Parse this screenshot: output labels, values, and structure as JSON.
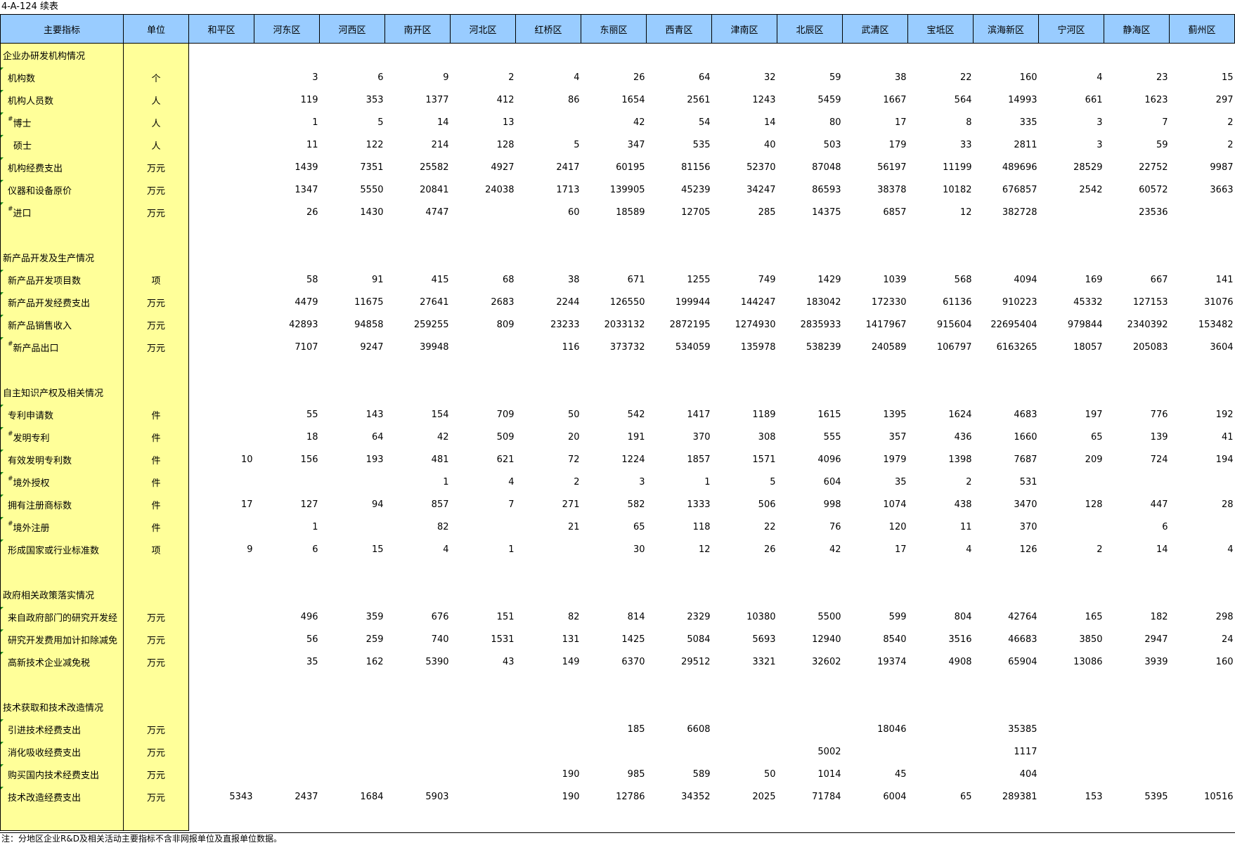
{
  "title": "4-A-124 续表",
  "headers": [
    "主要指标",
    "单位",
    "和平区",
    "河东区",
    "河西区",
    "南开区",
    "河北区",
    "红桥区",
    "东丽区",
    "西青区",
    "津南区",
    "北辰区",
    "武清区",
    "宝坻区",
    "滨海新区",
    "宁河区",
    "静海区",
    "蓟州区"
  ],
  "rows": [
    {
      "label": "企业办研发机构情况",
      "mark": "",
      "unit": "",
      "values": [
        "",
        "",
        "",
        "",
        "",
        "",
        "",
        "",
        "",
        "",
        "",
        "",
        "",
        "",
        "",
        ""
      ]
    },
    {
      "label": "机构数",
      "mark": "",
      "unit": "个",
      "values": [
        "",
        "3",
        "6",
        "9",
        "2",
        "4",
        "26",
        "64",
        "32",
        "59",
        "38",
        "22",
        "160",
        "4",
        "23",
        "15"
      ]
    },
    {
      "label": "机构人员数",
      "mark": "",
      "unit": "人",
      "values": [
        "",
        "119",
        "353",
        "1377",
        "412",
        "86",
        "1654",
        "2561",
        "1243",
        "5459",
        "1667",
        "564",
        "14993",
        "661",
        "1623",
        "297"
      ]
    },
    {
      "label": "博士",
      "mark": "#",
      "unit": "人",
      "values": [
        "",
        "1",
        "5",
        "14",
        "13",
        "",
        "42",
        "54",
        "14",
        "80",
        "17",
        "8",
        "335",
        "3",
        "7",
        "2"
      ]
    },
    {
      "label": "硕士",
      "mark": "",
      "unit": "人",
      "values": [
        "",
        "11",
        "122",
        "214",
        "128",
        "5",
        "347",
        "535",
        "40",
        "503",
        "179",
        "33",
        "2811",
        "3",
        "59",
        "2"
      ]
    },
    {
      "label": "机构经费支出",
      "mark": "",
      "unit": "万元",
      "values": [
        "",
        "1439",
        "7351",
        "25582",
        "4927",
        "2417",
        "60195",
        "81156",
        "52370",
        "87048",
        "56197",
        "11199",
        "489696",
        "28529",
        "22752",
        "9987"
      ]
    },
    {
      "label": "仪器和设备原价",
      "mark": "",
      "unit": "万元",
      "values": [
        "",
        "1347",
        "5550",
        "20841",
        "24038",
        "1713",
        "139905",
        "45239",
        "34247",
        "86593",
        "38378",
        "10182",
        "676857",
        "2542",
        "60572",
        "3663"
      ]
    },
    {
      "label": "进口",
      "mark": "#",
      "unit": "万元",
      "values": [
        "",
        "26",
        "1430",
        "4747",
        "",
        "60",
        "18589",
        "12705",
        "285",
        "14375",
        "6857",
        "12",
        "382728",
        "",
        "23536",
        ""
      ]
    },
    {
      "label": "",
      "mark": "",
      "unit": "",
      "values": [
        "",
        "",
        "",
        "",
        "",
        "",
        "",
        "",
        "",
        "",
        "",
        "",
        "",
        "",
        "",
        ""
      ]
    },
    {
      "label": "新产品开发及生产情况",
      "mark": "",
      "unit": "",
      "values": [
        "",
        "",
        "",
        "",
        "",
        "",
        "",
        "",
        "",
        "",
        "",
        "",
        "",
        "",
        "",
        ""
      ]
    },
    {
      "label": "新产品开发项目数",
      "mark": "",
      "unit": "项",
      "values": [
        "",
        "58",
        "91",
        "415",
        "68",
        "38",
        "671",
        "1255",
        "749",
        "1429",
        "1039",
        "568",
        "4094",
        "169",
        "667",
        "141"
      ]
    },
    {
      "label": "新产品开发经费支出",
      "mark": "",
      "unit": "万元",
      "values": [
        "",
        "4479",
        "11675",
        "27641",
        "2683",
        "2244",
        "126550",
        "199944",
        "144247",
        "183042",
        "172330",
        "61136",
        "910223",
        "45332",
        "127153",
        "31076"
      ]
    },
    {
      "label": "新产品销售收入",
      "mark": "",
      "unit": "万元",
      "values": [
        "",
        "42893",
        "94858",
        "259255",
        "809",
        "23233",
        "2033132",
        "2872195",
        "1274930",
        "2835933",
        "1417967",
        "915604",
        "22695404",
        "979844",
        "2340392",
        "153482"
      ]
    },
    {
      "label": "新产品出口",
      "mark": "#",
      "unit": "万元",
      "values": [
        "",
        "7107",
        "9247",
        "39948",
        "",
        "116",
        "373732",
        "534059",
        "135978",
        "538239",
        "240589",
        "106797",
        "6163265",
        "18057",
        "205083",
        "3604"
      ]
    },
    {
      "label": "",
      "mark": "",
      "unit": "",
      "values": [
        "",
        "",
        "",
        "",
        "",
        "",
        "",
        "",
        "",
        "",
        "",
        "",
        "",
        "",
        "",
        ""
      ]
    },
    {
      "label": "自主知识产权及相关情况",
      "mark": "",
      "unit": "",
      "values": [
        "",
        "",
        "",
        "",
        "",
        "",
        "",
        "",
        "",
        "",
        "",
        "",
        "",
        "",
        "",
        ""
      ]
    },
    {
      "label": "专利申请数",
      "mark": "",
      "unit": "件",
      "values": [
        "",
        "55",
        "143",
        "154",
        "709",
        "50",
        "542",
        "1417",
        "1189",
        "1615",
        "1395",
        "1624",
        "4683",
        "197",
        "776",
        "192"
      ]
    },
    {
      "label": "发明专利",
      "mark": "#",
      "unit": "件",
      "values": [
        "",
        "18",
        "64",
        "42",
        "509",
        "20",
        "191",
        "370",
        "308",
        "555",
        "357",
        "436",
        "1660",
        "65",
        "139",
        "41"
      ]
    },
    {
      "label": "有效发明专利数",
      "mark": "",
      "unit": "件",
      "values": [
        "10",
        "156",
        "193",
        "481",
        "621",
        "72",
        "1224",
        "1857",
        "1571",
        "4096",
        "1979",
        "1398",
        "7687",
        "209",
        "724",
        "194"
      ]
    },
    {
      "label": "境外授权",
      "mark": "#",
      "unit": "件",
      "values": [
        "",
        "",
        "",
        "1",
        "4",
        "2",
        "3",
        "1",
        "5",
        "604",
        "35",
        "2",
        "531",
        "",
        "",
        ""
      ]
    },
    {
      "label": "拥有注册商标数",
      "mark": "",
      "unit": "件",
      "values": [
        "17",
        "127",
        "94",
        "857",
        "7",
        "271",
        "582",
        "1333",
        "506",
        "998",
        "1074",
        "438",
        "3470",
        "128",
        "447",
        "28"
      ]
    },
    {
      "label": "境外注册",
      "mark": "#",
      "unit": "件",
      "values": [
        "",
        "1",
        "",
        "82",
        "",
        "21",
        "65",
        "118",
        "22",
        "76",
        "120",
        "11",
        "370",
        "",
        "6",
        ""
      ]
    },
    {
      "label": "形成国家或行业标准数",
      "mark": "",
      "unit": "项",
      "values": [
        "9",
        "6",
        "15",
        "4",
        "1",
        "",
        "30",
        "12",
        "26",
        "42",
        "17",
        "4",
        "126",
        "2",
        "14",
        "4"
      ]
    },
    {
      "label": "",
      "mark": "",
      "unit": "",
      "values": [
        "",
        "",
        "",
        "",
        "",
        "",
        "",
        "",
        "",
        "",
        "",
        "",
        "",
        "",
        "",
        ""
      ]
    },
    {
      "label": "政府相关政策落实情况",
      "mark": "",
      "unit": "",
      "values": [
        "",
        "",
        "",
        "",
        "",
        "",
        "",
        "",
        "",
        "",
        "",
        "",
        "",
        "",
        "",
        ""
      ]
    },
    {
      "label": "来自政府部门的研究开发经",
      "mark": "",
      "unit": "万元",
      "values": [
        "",
        "496",
        "359",
        "676",
        "151",
        "82",
        "814",
        "2329",
        "10380",
        "5500",
        "599",
        "804",
        "42764",
        "165",
        "182",
        "298"
      ]
    },
    {
      "label": "研究开发费用加计扣除减免",
      "mark": "",
      "unit": "万元",
      "values": [
        "",
        "56",
        "259",
        "740",
        "1531",
        "131",
        "1425",
        "5084",
        "5693",
        "12940",
        "8540",
        "3516",
        "46683",
        "3850",
        "2947",
        "24"
      ]
    },
    {
      "label": "高新技术企业减免税",
      "mark": "",
      "unit": "万元",
      "values": [
        "",
        "35",
        "162",
        "5390",
        "43",
        "149",
        "6370",
        "29512",
        "3321",
        "32602",
        "19374",
        "4908",
        "65904",
        "13086",
        "3939",
        "160"
      ]
    },
    {
      "label": "",
      "mark": "",
      "unit": "",
      "values": [
        "",
        "",
        "",
        "",
        "",
        "",
        "",
        "",
        "",
        "",
        "",
        "",
        "",
        "",
        "",
        ""
      ]
    },
    {
      "label": "技术获取和技术改造情况",
      "mark": "",
      "unit": "",
      "values": [
        "",
        "",
        "",
        "",
        "",
        "",
        "",
        "",
        "",
        "",
        "",
        "",
        "",
        "",
        "",
        ""
      ]
    },
    {
      "label": "引进技术经费支出",
      "mark": "",
      "unit": "万元",
      "values": [
        "",
        "",
        "",
        "",
        "",
        "",
        "185",
        "6608",
        "",
        "",
        "18046",
        "",
        "35385",
        "",
        "",
        ""
      ]
    },
    {
      "label": "消化吸收经费支出",
      "mark": "",
      "unit": "万元",
      "values": [
        "",
        "",
        "",
        "",
        "",
        "",
        "",
        "",
        "",
        "5002",
        "",
        "",
        "1117",
        "",
        "",
        ""
      ]
    },
    {
      "label": "购买国内技术经费支出",
      "mark": "",
      "unit": "万元",
      "values": [
        "",
        "",
        "",
        "",
        "",
        "190",
        "985",
        "589",
        "50",
        "1014",
        "45",
        "",
        "404",
        "",
        "",
        ""
      ]
    },
    {
      "label": "技术改造经费支出",
      "mark": "",
      "unit": "万元",
      "values": [
        "5343",
        "2437",
        "1684",
        "5903",
        "",
        "190",
        "12786",
        "34352",
        "2025",
        "71784",
        "6004",
        "65",
        "289381",
        "153",
        "5395",
        "10516"
      ]
    },
    {
      "label": "",
      "mark": "",
      "unit": "",
      "values": [
        "",
        "",
        "",
        "",
        "",
        "",
        "",
        "",
        "",
        "",
        "",
        "",
        "",
        "",
        "",
        ""
      ]
    }
  ],
  "note": "注：分地区企业R&D及相关活动主要指标不含非网报单位及直报单位数据。",
  "colors": {
    "header_bg": "#99ccff",
    "label_col_bg": "#ffff99",
    "marker": "#1e8c1e"
  }
}
